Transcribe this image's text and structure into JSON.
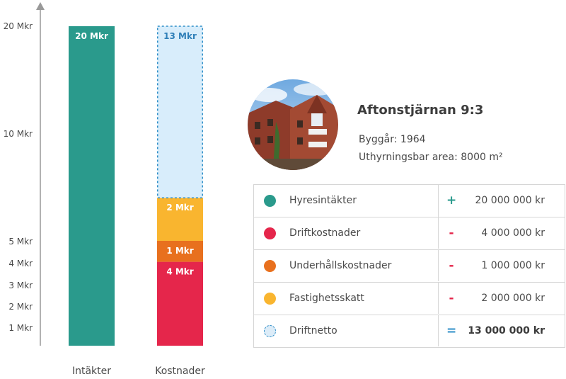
{
  "chart_data": {
    "type": "bar",
    "stacked": true,
    "categories": [
      "Intäkter",
      "Kostnader"
    ],
    "y_ticks": [
      {
        "value": 1,
        "label": "1 Mkr"
      },
      {
        "value": 2,
        "label": "2 Mkr"
      },
      {
        "value": 3,
        "label": "3 Mkr"
      },
      {
        "value": 4,
        "label": "4 Mkr"
      },
      {
        "value": 5,
        "label": "5 Mkr"
      },
      {
        "value": 10,
        "label": "10 Mkr"
      },
      {
        "value": 20,
        "label": "20 Mkr"
      }
    ],
    "ylim": [
      0,
      20
    ],
    "series": [
      {
        "category": "Intäkter",
        "values": [
          {
            "value": 20,
            "label": "20 Mkr",
            "color": "#2a9a8c",
            "text_color": "#ffffff"
          }
        ]
      },
      {
        "category": "Kostnader",
        "values": [
          {
            "value": 4,
            "label": "4 Mkr",
            "color": "#e5264b",
            "text_color": "#ffffff"
          },
          {
            "value": 1,
            "label": "1 Mkr",
            "color": "#e8701e",
            "text_color": "#ffffff"
          },
          {
            "value": 2,
            "label": "2 Mkr",
            "color": "#f9b52f",
            "text_color": "#ffffff"
          },
          {
            "value": 13,
            "label": "13 Mkr",
            "color": "#d8edfb",
            "text_color": "#2f7fb8",
            "dashed": true
          }
        ]
      }
    ]
  },
  "property": {
    "name": "Aftonstjärnan 9:3",
    "build_year": "Byggår: 1964",
    "area": "Uthyrningsbar area: 8000 m²",
    "photo_icon": "building-photo"
  },
  "table": {
    "rows": [
      {
        "label": "Hyresintäkter",
        "sign": "+",
        "sign_color": "#2a9a8c",
        "amount": "20 000 000 kr",
        "dot_color": "#2a9a8c",
        "bold": false
      },
      {
        "label": "Driftkostnader",
        "sign": "-",
        "sign_color": "#e5264b",
        "amount": "4 000 000 kr",
        "dot_color": "#e5264b",
        "bold": false
      },
      {
        "label": "Underhållskostnader",
        "sign": "-",
        "sign_color": "#e5264b",
        "amount": "1 000 000 kr",
        "dot_color": "#e8701e",
        "bold": false
      },
      {
        "label": "Fastighetsskatt",
        "sign": "-",
        "sign_color": "#e5264b",
        "amount": "2 000 000 kr",
        "dot_color": "#f9b52f",
        "bold": false
      },
      {
        "label": "Driftnetto",
        "sign": "=",
        "sign_color": "#2f8fc8",
        "amount": "13 000 000 kr",
        "dot_color": "dashed",
        "bold": true
      }
    ]
  }
}
